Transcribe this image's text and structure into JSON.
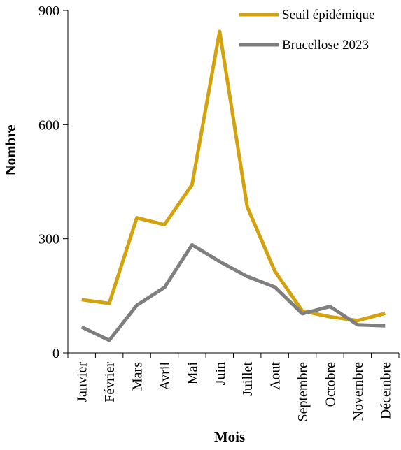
{
  "chart_data": {
    "type": "line",
    "xlabel": "Mois",
    "ylabel": "Nombre",
    "ylim": [
      0,
      900
    ],
    "yticks": [
      0,
      300,
      600,
      900
    ],
    "categories": [
      "Janvier",
      "Février",
      "Mars",
      "Avril",
      "Mai",
      "Juin",
      "Juillet",
      "Aout",
      "Septembre",
      "Octobre",
      "Novembre",
      "Décembre"
    ],
    "series": [
      {
        "name": "Seuil épidémique",
        "color": "#D4A20C",
        "values": [
          140,
          130,
          355,
          337,
          442,
          845,
          384,
          215,
          110,
          95,
          85,
          104
        ]
      },
      {
        "name": "Brucellose 2023",
        "color": "#7F7F7F",
        "values": [
          68,
          33,
          125,
          172,
          284,
          240,
          201,
          173,
          103,
          122,
          74,
          71
        ]
      }
    ],
    "grid": false,
    "legend_position": "top-right"
  }
}
